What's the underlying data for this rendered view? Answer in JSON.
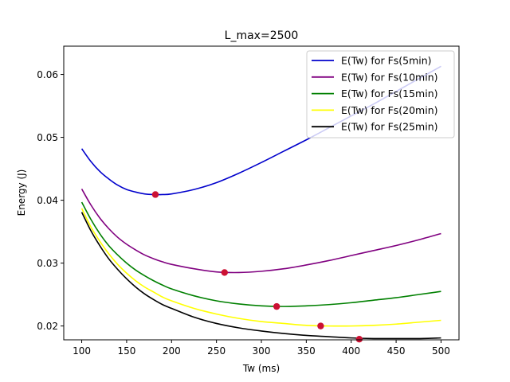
{
  "chart_data": {
    "type": "line",
    "title": "L_max=2500",
    "xlabel": "Tw (ms)",
    "ylabel": "Energy (J)",
    "xlim": [
      80,
      520
    ],
    "ylim": [
      0.0178,
      0.0645
    ],
    "xticks": [
      100,
      150,
      200,
      250,
      300,
      350,
      400,
      450,
      500
    ],
    "yticks": [
      0.02,
      0.03,
      0.04,
      0.05,
      0.06
    ],
    "grid": false,
    "legend_position": "top-right",
    "series": [
      {
        "name": "E(Tw) for Fs(5min)",
        "color": "#0000cc",
        "x": [
          100,
          110,
          120,
          130,
          140,
          150,
          160,
          170,
          180,
          190,
          200,
          225,
          250,
          275,
          300,
          325,
          350,
          375,
          400,
          425,
          450,
          475,
          500
        ],
        "y": [
          0.0482,
          0.0462,
          0.0446,
          0.0434,
          0.0424,
          0.0417,
          0.0413,
          0.041,
          0.0409,
          0.0409,
          0.041,
          0.0417,
          0.0428,
          0.0443,
          0.046,
          0.0478,
          0.0496,
          0.0515,
          0.0534,
          0.0553,
          0.0573,
          0.0593,
          0.0613
        ]
      },
      {
        "name": "E(Tw) for Fs(10min)",
        "color": "#800080",
        "x": [
          100,
          110,
          120,
          130,
          140,
          150,
          160,
          170,
          180,
          190,
          200,
          225,
          250,
          275,
          300,
          325,
          350,
          375,
          400,
          425,
          450,
          475,
          500
        ],
        "y": [
          0.0418,
          0.0393,
          0.0372,
          0.0355,
          0.0341,
          0.033,
          0.0321,
          0.0313,
          0.0307,
          0.0302,
          0.0298,
          0.0291,
          0.0286,
          0.0285,
          0.0287,
          0.0291,
          0.0297,
          0.0304,
          0.0312,
          0.032,
          0.0328,
          0.0337,
          0.0347
        ]
      },
      {
        "name": "E(Tw) for Fs(15min)",
        "color": "#008000",
        "x": [
          100,
          110,
          120,
          130,
          140,
          150,
          160,
          170,
          180,
          190,
          200,
          225,
          250,
          275,
          300,
          325,
          350,
          375,
          400,
          425,
          450,
          475,
          500
        ],
        "y": [
          0.0397,
          0.037,
          0.0347,
          0.0328,
          0.0313,
          0.03,
          0.0289,
          0.028,
          0.0272,
          0.0265,
          0.0259,
          0.0248,
          0.024,
          0.0235,
          0.0232,
          0.0231,
          0.0232,
          0.0234,
          0.0237,
          0.0241,
          0.0245,
          0.025,
          0.0255
        ]
      },
      {
        "name": "E(Tw) for Fs(20min)",
        "color": "#ffff00",
        "x": [
          100,
          110,
          120,
          130,
          140,
          150,
          160,
          170,
          180,
          190,
          200,
          225,
          250,
          275,
          300,
          325,
          350,
          375,
          400,
          425,
          450,
          475,
          500
        ],
        "y": [
          0.0387,
          0.0358,
          0.0335,
          0.0315,
          0.0298,
          0.0284,
          0.0272,
          0.0262,
          0.0254,
          0.0246,
          0.024,
          0.0228,
          0.0219,
          0.0212,
          0.0207,
          0.0204,
          0.0201,
          0.02,
          0.02,
          0.0201,
          0.0203,
          0.0206,
          0.0209
        ]
      },
      {
        "name": "E(Tw) for Fs(25min)",
        "color": "#000000",
        "x": [
          100,
          110,
          120,
          130,
          140,
          150,
          160,
          170,
          180,
          190,
          200,
          225,
          250,
          275,
          300,
          325,
          350,
          375,
          400,
          425,
          450,
          475,
          500
        ],
        "y": [
          0.0381,
          0.0352,
          0.0328,
          0.0307,
          0.029,
          0.0275,
          0.0262,
          0.0251,
          0.0242,
          0.0234,
          0.0228,
          0.0214,
          0.0204,
          0.0197,
          0.0192,
          0.0188,
          0.0185,
          0.0183,
          0.0181,
          0.018,
          0.018,
          0.018,
          0.0181
        ]
      }
    ],
    "minima": [
      {
        "series": "E(Tw) for Fs(5min)",
        "x": 182,
        "y": 0.0409
      },
      {
        "series": "E(Tw) for Fs(10min)",
        "x": 259,
        "y": 0.0285
      },
      {
        "series": "E(Tw) for Fs(15min)",
        "x": 317,
        "y": 0.0231
      },
      {
        "series": "E(Tw) for Fs(20min)",
        "x": 366,
        "y": 0.02
      },
      {
        "series": "E(Tw) for Fs(25min)",
        "x": 409,
        "y": 0.0179
      }
    ],
    "minima_marker_color": "#cc1133"
  }
}
